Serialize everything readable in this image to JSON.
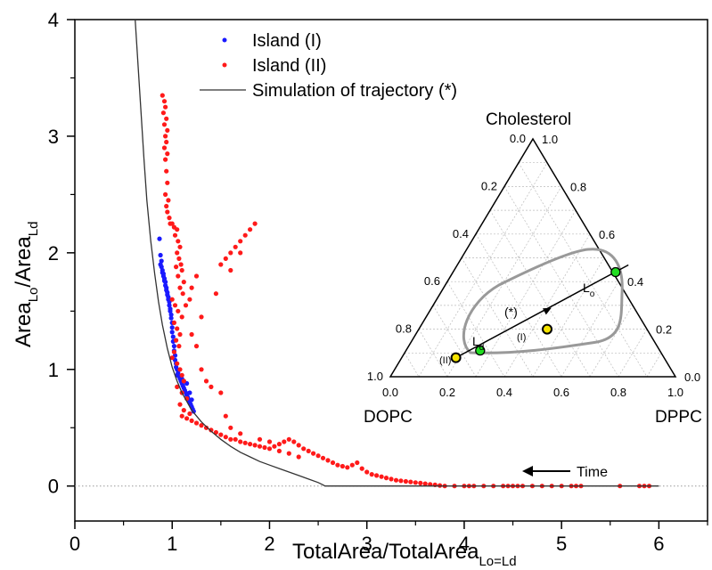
{
  "chart_data": {
    "type": "scatter",
    "xlabel": "TotalArea/TotalArea",
    "xlabel_sub": "Lo=Ld",
    "ylabel": "Area",
    "ylabel_sub1": "Lo",
    "ylabel_mid": "/Area",
    "ylabel_sub2": "Ld",
    "xlim": [
      0,
      6.5
    ],
    "ylim": [
      -0.3,
      4
    ],
    "x_ticks": [
      "0",
      "1",
      "2",
      "3",
      "4",
      "5",
      "6"
    ],
    "y_ticks": [
      "0",
      "1",
      "2",
      "3",
      "4"
    ],
    "legend_position": "top-center",
    "reference_line_y": 0,
    "annotation": "Time",
    "series": [
      {
        "name": "Island (I)",
        "kind": "points",
        "color": "#1a1aff",
        "points": [
          [
            0.87,
            2.12
          ],
          [
            0.88,
            1.98
          ],
          [
            0.89,
            1.93
          ],
          [
            0.88,
            1.9
          ],
          [
            0.89,
            1.88
          ],
          [
            0.9,
            1.85
          ],
          [
            0.9,
            1.83
          ],
          [
            0.91,
            1.82
          ],
          [
            0.91,
            1.8
          ],
          [
            0.92,
            1.78
          ],
          [
            0.92,
            1.76
          ],
          [
            0.93,
            1.75
          ],
          [
            0.93,
            1.72
          ],
          [
            0.94,
            1.7
          ],
          [
            0.94,
            1.68
          ],
          [
            0.95,
            1.66
          ],
          [
            0.95,
            1.64
          ],
          [
            0.96,
            1.62
          ],
          [
            0.96,
            1.6
          ],
          [
            0.97,
            1.58
          ],
          [
            0.97,
            1.55
          ],
          [
            0.98,
            1.52
          ],
          [
            0.98,
            1.5
          ],
          [
            0.99,
            1.47
          ],
          [
            0.99,
            1.44
          ],
          [
            1.0,
            1.4
          ],
          [
            1.0,
            1.36
          ],
          [
            1.0,
            1.32
          ],
          [
            1.01,
            1.28
          ],
          [
            1.01,
            1.24
          ],
          [
            1.02,
            1.2
          ],
          [
            1.02,
            1.16
          ],
          [
            1.03,
            1.12
          ],
          [
            1.03,
            1.08
          ],
          [
            1.04,
            1.05
          ],
          [
            1.04,
            1.02
          ],
          [
            1.05,
            1.0
          ],
          [
            1.06,
            0.97
          ],
          [
            1.07,
            0.94
          ],
          [
            1.08,
            0.92
          ],
          [
            1.09,
            0.9
          ],
          [
            1.1,
            0.88
          ],
          [
            1.11,
            0.86
          ],
          [
            1.12,
            0.84
          ],
          [
            1.13,
            0.82
          ],
          [
            1.14,
            0.8
          ],
          [
            1.15,
            0.78
          ],
          [
            1.16,
            0.76
          ],
          [
            1.17,
            0.74
          ],
          [
            1.18,
            0.72
          ],
          [
            1.19,
            0.7
          ],
          [
            1.2,
            0.68
          ],
          [
            1.21,
            0.66
          ],
          [
            1.22,
            0.64
          ],
          [
            1.12,
            0.9
          ],
          [
            1.1,
            0.92
          ],
          [
            1.15,
            0.88
          ],
          [
            1.18,
            0.8
          ],
          [
            1.2,
            0.74
          ],
          [
            1.05,
            0.95
          ]
        ]
      },
      {
        "name": "Island (II)",
        "kind": "points",
        "color": "#ff1a1a",
        "points": [
          [
            0.9,
            3.35
          ],
          [
            0.92,
            3.3
          ],
          [
            0.93,
            3.25
          ],
          [
            0.91,
            3.2
          ],
          [
            0.94,
            3.15
          ],
          [
            0.92,
            3.1
          ],
          [
            0.95,
            3.05
          ],
          [
            0.93,
            3.0
          ],
          [
            0.94,
            2.95
          ],
          [
            0.92,
            2.9
          ],
          [
            0.95,
            2.85
          ],
          [
            0.93,
            2.8
          ],
          [
            0.94,
            2.7
          ],
          [
            0.95,
            2.6
          ],
          [
            0.93,
            2.5
          ],
          [
            0.96,
            2.45
          ],
          [
            0.94,
            2.4
          ],
          [
            0.95,
            2.35
          ],
          [
            0.97,
            2.3
          ],
          [
            0.98,
            2.25
          ],
          [
            1.0,
            2.25
          ],
          [
            1.02,
            2.22
          ],
          [
            1.05,
            2.2
          ],
          [
            1.03,
            2.15
          ],
          [
            1.06,
            2.1
          ],
          [
            1.08,
            2.05
          ],
          [
            1.05,
            2.0
          ],
          [
            1.07,
            1.95
          ],
          [
            1.09,
            1.9
          ],
          [
            1.04,
            1.88
          ],
          [
            1.1,
            1.85
          ],
          [
            1.06,
            1.8
          ],
          [
            1.12,
            1.75
          ],
          [
            1.08,
            1.7
          ],
          [
            1.11,
            1.65
          ],
          [
            1.0,
            1.6
          ],
          [
            1.03,
            1.55
          ],
          [
            1.14,
            1.55
          ],
          [
            1.06,
            1.5
          ],
          [
            1.1,
            1.45
          ],
          [
            1.02,
            1.4
          ],
          [
            1.05,
            1.35
          ],
          [
            1.08,
            1.3
          ],
          [
            1.04,
            1.25
          ],
          [
            1.07,
            1.2
          ],
          [
            1.02,
            1.15
          ],
          [
            1.0,
            1.1
          ],
          [
            1.05,
            1.05
          ],
          [
            1.08,
            1.0
          ],
          [
            1.1,
            0.95
          ],
          [
            1.12,
            0.9
          ],
          [
            1.05,
            0.85
          ],
          [
            1.1,
            0.8
          ],
          [
            1.15,
            0.75
          ],
          [
            1.08,
            0.7
          ],
          [
            1.12,
            0.65
          ],
          [
            1.18,
            0.62
          ],
          [
            1.1,
            0.6
          ],
          [
            1.15,
            0.58
          ],
          [
            1.2,
            0.56
          ],
          [
            1.25,
            0.54
          ],
          [
            1.3,
            0.52
          ],
          [
            1.35,
            0.5
          ],
          [
            1.4,
            0.48
          ],
          [
            1.45,
            0.46
          ],
          [
            1.5,
            0.44
          ],
          [
            1.55,
            0.42
          ],
          [
            1.6,
            0.4
          ],
          [
            1.65,
            0.4
          ],
          [
            1.7,
            0.38
          ],
          [
            1.75,
            0.37
          ],
          [
            1.8,
            0.36
          ],
          [
            1.85,
            0.35
          ],
          [
            1.9,
            0.34
          ],
          [
            1.95,
            0.33
          ],
          [
            2.0,
            0.32
          ],
          [
            2.05,
            0.34
          ],
          [
            2.1,
            0.36
          ],
          [
            2.15,
            0.38
          ],
          [
            2.2,
            0.4
          ],
          [
            2.25,
            0.38
          ],
          [
            2.3,
            0.35
          ],
          [
            2.35,
            0.32
          ],
          [
            2.4,
            0.3
          ],
          [
            2.45,
            0.28
          ],
          [
            2.5,
            0.26
          ],
          [
            2.55,
            0.24
          ],
          [
            2.6,
            0.22
          ],
          [
            2.65,
            0.2
          ],
          [
            2.7,
            0.18
          ],
          [
            2.75,
            0.17
          ],
          [
            2.8,
            0.16
          ],
          [
            2.85,
            0.18
          ],
          [
            2.9,
            0.2
          ],
          [
            2.95,
            0.15
          ],
          [
            3.0,
            0.12
          ],
          [
            3.05,
            0.1
          ],
          [
            3.1,
            0.09
          ],
          [
            3.15,
            0.08
          ],
          [
            3.2,
            0.07
          ],
          [
            3.25,
            0.06
          ],
          [
            3.3,
            0.05
          ],
          [
            3.35,
            0.045
          ],
          [
            3.4,
            0.04
          ],
          [
            3.45,
            0.035
          ],
          [
            3.5,
            0.03
          ],
          [
            3.55,
            0.025
          ],
          [
            3.6,
            0.02
          ],
          [
            3.65,
            0.015
          ],
          [
            3.7,
            0.01
          ],
          [
            3.75,
            0.005
          ],
          [
            3.8,
            0.0
          ],
          [
            3.9,
            0.0
          ],
          [
            4.0,
            0.0
          ],
          [
            4.05,
            0.0
          ],
          [
            4.1,
            0.0
          ],
          [
            4.2,
            0.0
          ],
          [
            4.3,
            0.0
          ],
          [
            4.4,
            0.0
          ],
          [
            4.45,
            0.0
          ],
          [
            4.5,
            0.0
          ],
          [
            4.55,
            0.0
          ],
          [
            4.6,
            0.0
          ],
          [
            4.7,
            0.0
          ],
          [
            4.8,
            0.0
          ],
          [
            4.9,
            0.0
          ],
          [
            5.0,
            0.0
          ],
          [
            5.1,
            0.0
          ],
          [
            5.15,
            0.0
          ],
          [
            5.2,
            0.0
          ],
          [
            5.6,
            0.0
          ],
          [
            5.8,
            0.0
          ],
          [
            5.85,
            0.0
          ],
          [
            5.9,
            0.0
          ],
          [
            1.5,
            1.9
          ],
          [
            1.55,
            1.95
          ],
          [
            1.6,
            2.0
          ],
          [
            1.65,
            2.05
          ],
          [
            1.7,
            2.1
          ],
          [
            1.75,
            2.15
          ],
          [
            1.8,
            2.2
          ],
          [
            1.85,
            2.25
          ],
          [
            1.6,
            1.85
          ],
          [
            1.7,
            2.0
          ],
          [
            1.45,
            1.65
          ],
          [
            1.3,
            1.45
          ],
          [
            1.25,
            1.8
          ],
          [
            1.2,
            1.7
          ],
          [
            1.18,
            1.6
          ],
          [
            1.2,
            1.3
          ],
          [
            1.25,
            1.2
          ],
          [
            1.3,
            1.0
          ],
          [
            1.35,
            0.9
          ],
          [
            1.4,
            0.85
          ],
          [
            1.5,
            0.8
          ],
          [
            1.55,
            0.6
          ],
          [
            1.6,
            0.5
          ],
          [
            1.7,
            0.45
          ],
          [
            1.9,
            0.4
          ],
          [
            2.0,
            0.38
          ],
          [
            2.1,
            0.3
          ],
          [
            2.2,
            0.28
          ],
          [
            2.3,
            0.25
          ]
        ]
      },
      {
        "name": "Simulation of trajectory (*)",
        "kind": "line",
        "color": "#333333",
        "points": [
          [
            0.62,
            4.0
          ],
          [
            0.65,
            3.6
          ],
          [
            0.68,
            3.2
          ],
          [
            0.71,
            2.8
          ],
          [
            0.74,
            2.45
          ],
          [
            0.78,
            2.1
          ],
          [
            0.82,
            1.82
          ],
          [
            0.86,
            1.58
          ],
          [
            0.9,
            1.38
          ],
          [
            0.95,
            1.18
          ],
          [
            1.0,
            1.02
          ],
          [
            1.05,
            0.9
          ],
          [
            1.1,
            0.8
          ],
          [
            1.2,
            0.65
          ],
          [
            1.3,
            0.55
          ],
          [
            1.4,
            0.47
          ],
          [
            1.5,
            0.4
          ],
          [
            1.6,
            0.34
          ],
          [
            1.7,
            0.29
          ],
          [
            1.8,
            0.25
          ],
          [
            1.9,
            0.21
          ],
          [
            2.0,
            0.18
          ],
          [
            2.1,
            0.15
          ],
          [
            2.2,
            0.12
          ],
          [
            2.3,
            0.09
          ],
          [
            2.4,
            0.06
          ],
          [
            2.5,
            0.03
          ],
          [
            2.55,
            0.01
          ],
          [
            2.57,
            0.0
          ],
          [
            3.0,
            0.0
          ],
          [
            4.0,
            0.0
          ],
          [
            5.0,
            0.0
          ],
          [
            6.0,
            0.0
          ]
        ]
      }
    ],
    "inset_ternary": {
      "type": "ternary",
      "vertex_top": "Cholesterol",
      "vertex_left": "DOPC",
      "vertex_right": "DPPC",
      "bottom_ticks": [
        "0.0",
        "0.2",
        "0.4",
        "0.6",
        "0.8",
        "1.0"
      ],
      "right_ticks": [
        "0.0",
        "0.2",
        "0.4",
        "0.6",
        "0.8",
        "1.0"
      ],
      "left_ticks": [
        "0.0",
        "0.2",
        "0.4",
        "0.6",
        "0.8",
        "1.0"
      ],
      "labels": {
        "trajectory": "(*)",
        "island_one": "(I)",
        "island_two": "(II)",
        "lo_main": "L",
        "lo_sub": "o",
        "ld_main": "L",
        "ld_sub": "d"
      },
      "colors": {
        "grid": "#bbbbbb",
        "boundary": "#999999",
        "tie_point": "#22dd22",
        "island_point": "#f5e400"
      },
      "compositions": {
        "island_II": {
          "DPPC": 0.19,
          "Cholesterol": 0.08
        },
        "Ld": {
          "DPPC": 0.26,
          "Cholesterol": 0.11
        },
        "island_I": {
          "DPPC": 0.45,
          "Cholesterol": 0.2
        },
        "Lo": {
          "DPPC": 0.57,
          "Cholesterol": 0.44
        },
        "trajectory_end": {
          "DPPC": 0.6,
          "Cholesterol": 0.47
        },
        "arrow_point": {
          "DPPC": 0.42,
          "Cholesterol": 0.29
        }
      }
    }
  }
}
